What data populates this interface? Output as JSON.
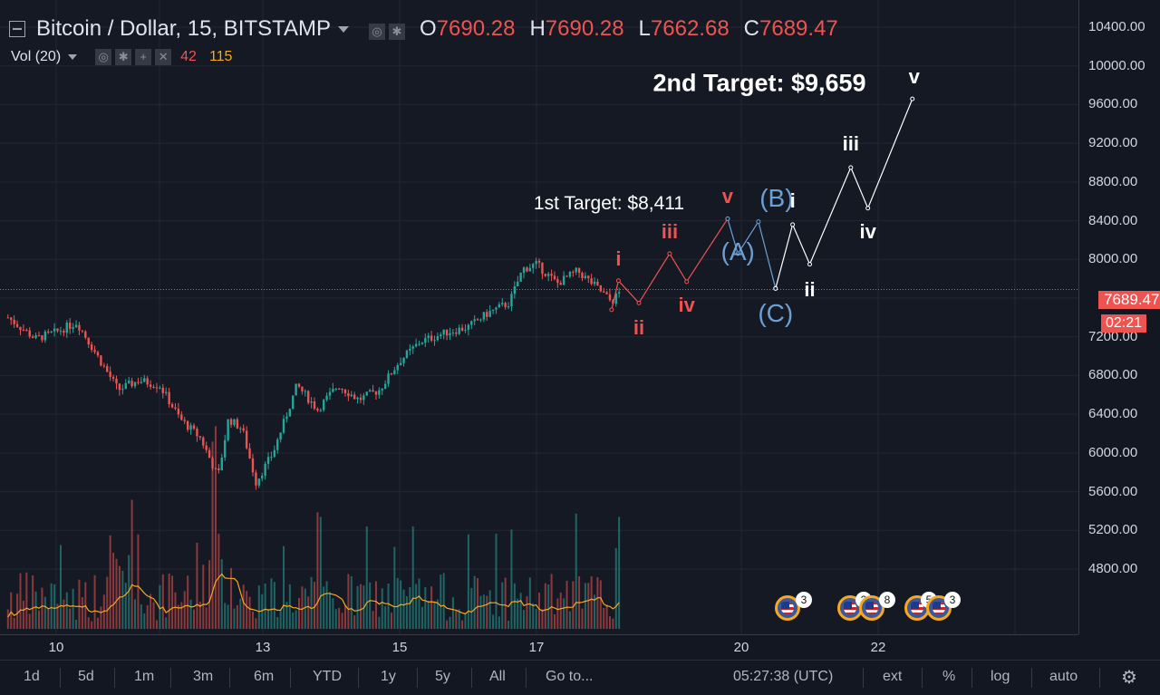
{
  "legend": {
    "symbol": "Bitcoin / Dollar, 15, BITSTAMP",
    "ohlc": [
      {
        "label": "O",
        "value": "7690.28"
      },
      {
        "label": "H",
        "value": "7690.28"
      },
      {
        "label": "L",
        "value": "7662.68"
      },
      {
        "label": "C",
        "value": "7689.47"
      }
    ],
    "volume_label": "Vol (20)",
    "volume_values": [
      "42",
      "115"
    ]
  },
  "price_axis": {
    "ticks": [
      "10400.00",
      "10000.00",
      "9600.00",
      "9200.00",
      "8800.00",
      "8400.00",
      "8000.00",
      "7200.00",
      "6800.00",
      "6400.00",
      "6000.00",
      "5600.00",
      "5200.00",
      "4800.00"
    ],
    "current_price": "7689.47",
    "countdown": "02:21"
  },
  "time_axis": {
    "ticks": [
      "10",
      "13",
      "15",
      "17",
      "20",
      "22"
    ]
  },
  "annotations": {
    "target1": "1st Target: $8,411",
    "target2": "2nd Target: $9,659",
    "red_waves": [
      "i",
      "ii",
      "iii",
      "iv",
      "v"
    ],
    "blue_waves": [
      "(A)",
      "(B)",
      "(C)"
    ],
    "white_waves": [
      "i",
      "ii",
      "iii",
      "iv",
      "v"
    ]
  },
  "events": [
    "3",
    "2",
    "8",
    "5",
    "3"
  ],
  "bottom_bar": {
    "ranges": [
      "1d",
      "5d",
      "1m",
      "3m",
      "6m",
      "YTD",
      "1y",
      "5y",
      "All"
    ],
    "goto": "Go to...",
    "clock": "05:27:38 (UTC)",
    "ext": "ext",
    "percent": "%",
    "log": "log",
    "auto": "auto"
  },
  "colors": {
    "up": "#26a69a",
    "down": "#ef5350",
    "red_wave": "#ef5350",
    "blue_wave": "#6c9fd4",
    "white_wave": "#ffffff",
    "volume_ma": "#f6a821"
  },
  "chart_data": {
    "type": "candlestick",
    "title": "Bitcoin / Dollar, 15, BITSTAMP",
    "ylim": [
      4400,
      10600
    ],
    "x_ticks": [
      "10",
      "13",
      "15",
      "17",
      "20",
      "22"
    ],
    "price_path": [
      {
        "day": 9.3,
        "price": 7400
      },
      {
        "day": 9.7,
        "price": 7180
      },
      {
        "day": 10.0,
        "price": 7250
      },
      {
        "day": 10.3,
        "price": 7350
      },
      {
        "day": 10.6,
        "price": 7000
      },
      {
        "day": 10.9,
        "price": 6650
      },
      {
        "day": 11.2,
        "price": 6750
      },
      {
        "day": 11.5,
        "price": 6700
      },
      {
        "day": 11.8,
        "price": 6350
      },
      {
        "day": 12.1,
        "price": 6150
      },
      {
        "day": 12.35,
        "price": 5750
      },
      {
        "day": 12.5,
        "price": 6350
      },
      {
        "day": 12.7,
        "price": 6250
      },
      {
        "day": 12.9,
        "price": 5700
      },
      {
        "day": 13.15,
        "price": 6000
      },
      {
        "day": 13.5,
        "price": 6700
      },
      {
        "day": 13.8,
        "price": 6450
      },
      {
        "day": 14.1,
        "price": 6700
      },
      {
        "day": 14.4,
        "price": 6550
      },
      {
        "day": 14.7,
        "price": 6650
      },
      {
        "day": 15.0,
        "price": 6950
      },
      {
        "day": 15.3,
        "price": 7150
      },
      {
        "day": 15.7,
        "price": 7250
      },
      {
        "day": 16.0,
        "price": 7300
      },
      {
        "day": 16.3,
        "price": 7450
      },
      {
        "day": 16.6,
        "price": 7550
      },
      {
        "day": 16.8,
        "price": 7900
      },
      {
        "day": 17.0,
        "price": 7950
      },
      {
        "day": 17.3,
        "price": 7750
      },
      {
        "day": 17.6,
        "price": 7880
      },
      {
        "day": 17.9,
        "price": 7700
      },
      {
        "day": 18.1,
        "price": 7560
      },
      {
        "day": 18.25,
        "price": 7689
      }
    ],
    "red_wave_points": [
      {
        "label": "i",
        "day": 18.2,
        "price": 7780
      },
      {
        "label": "ii",
        "day": 18.5,
        "price": 7550
      },
      {
        "label": "iii",
        "day": 18.95,
        "price": 8060
      },
      {
        "label": "iv",
        "day": 19.2,
        "price": 7770
      },
      {
        "label": "v",
        "day": 19.8,
        "price": 8420
      }
    ],
    "blue_wave_points": [
      {
        "label": "(A)",
        "day": 19.95,
        "price": 8060
      },
      {
        "label": "(B)",
        "day": 20.25,
        "price": 8390
      },
      {
        "label": "(C)",
        "day": 20.5,
        "price": 7700
      }
    ],
    "white_wave_points": [
      {
        "label": "i",
        "day": 20.75,
        "price": 8360
      },
      {
        "label": "ii",
        "day": 21.0,
        "price": 7950
      },
      {
        "label": "iii",
        "day": 21.6,
        "price": 8950
      },
      {
        "label": "iv",
        "day": 21.85,
        "price": 8530
      },
      {
        "label": "v",
        "day": 22.5,
        "price": 9659
      }
    ],
    "targets": {
      "first": 8411,
      "second": 9659
    },
    "current_price": 7689.47
  }
}
